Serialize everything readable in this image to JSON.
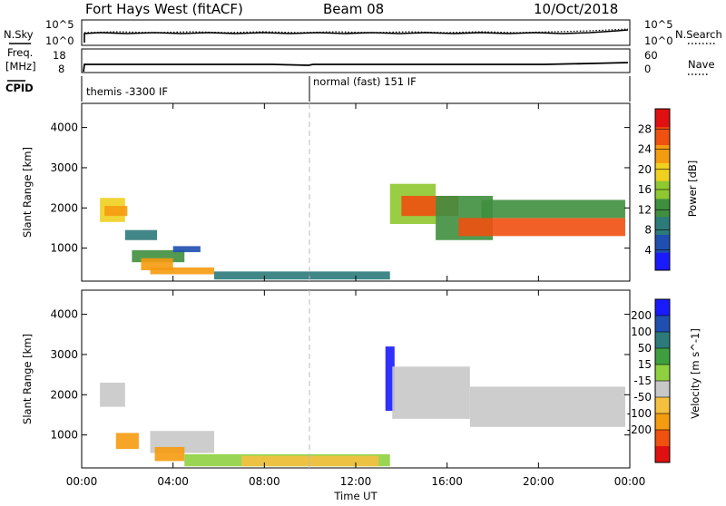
{
  "header": {
    "station": "Fort Hays West (fitACF)",
    "beam": "Beam 08",
    "date": "10/Oct/2018"
  },
  "top_panels": {
    "nsky_label": "N.Sky",
    "nsearch_label": "N.Search",
    "noise_ticks_left": [
      "10^5",
      "10^0"
    ],
    "noise_ticks_right": [
      "10^5",
      "10^0"
    ],
    "freq_label_1": "Freq.",
    "freq_label_2": "[MHz]",
    "freq_ticks": [
      "18",
      "8"
    ],
    "nave_label": "Nave",
    "nave_ticks": [
      "60",
      "0"
    ],
    "cpid_label": "CPID",
    "cpid_segments": [
      {
        "text": "themis -3300 IF",
        "start_hour": 0
      },
      {
        "text": "normal (fast) 151 IF",
        "start_hour": 10
      }
    ]
  },
  "colors": {
    "power_scale": [
      "#1a1aff",
      "#1f4fb0",
      "#2d7a7a",
      "#3f8f3f",
      "#8fc830",
      "#f0d020",
      "#f59b10",
      "#f05010",
      "#e01010"
    ],
    "velocity_scale": [
      "#e01010",
      "#f05010",
      "#f59b10",
      "#f5c040",
      "#c8c8c8",
      "#8fd040",
      "#3f9f3f",
      "#2d7a7a",
      "#1f4fb0",
      "#1a1aff"
    ],
    "ground_scatter": "#c8c8c8"
  },
  "chart_data": [
    {
      "type": "heatmap",
      "panel": "power",
      "ylabel": "Slant Range [km]",
      "x_ticks": [
        "00:00",
        "04:00",
        "08:00",
        "12:00",
        "16:00",
        "20:00",
        "00:00"
      ],
      "xlim_hours": [
        0,
        24
      ],
      "y_ticks": [
        "1000",
        "2000",
        "3000",
        "4000"
      ],
      "ylim": [
        180,
        4600
      ],
      "colorbar": {
        "label": "Power [dB]",
        "ticks": [
          "4",
          "8",
          "12",
          "16",
          "20",
          "24",
          "28"
        ],
        "range": [
          0,
          32
        ]
      },
      "regions": [
        {
          "t0": 0.8,
          "t1": 1.9,
          "r0": 1650,
          "r1": 2250,
          "value": 18
        },
        {
          "t0": 1.0,
          "t1": 2.0,
          "r0": 1800,
          "r1": 2050,
          "value": 24
        },
        {
          "t0": 1.9,
          "t1": 3.3,
          "r0": 1200,
          "r1": 1450,
          "value": 8
        },
        {
          "t0": 2.2,
          "t1": 4.5,
          "r0": 650,
          "r1": 950,
          "value": 14
        },
        {
          "t0": 2.6,
          "t1": 4.0,
          "r0": 450,
          "r1": 750,
          "value": 22
        },
        {
          "t0": 3.0,
          "t1": 5.8,
          "r0": 350,
          "r1": 520,
          "value": 24
        },
        {
          "t0": 4.0,
          "t1": 5.2,
          "r0": 900,
          "r1": 1050,
          "value": 6
        },
        {
          "t0": 5.8,
          "t1": 13.5,
          "r0": 220,
          "r1": 420,
          "value": 10
        },
        {
          "t0": 13.5,
          "t1": 15.5,
          "r0": 1600,
          "r1": 2600,
          "value": 16
        },
        {
          "t0": 14.0,
          "t1": 16.5,
          "r0": 1800,
          "r1": 2300,
          "value": 26
        },
        {
          "t0": 15.5,
          "t1": 18.0,
          "r0": 1200,
          "r1": 2300,
          "value": 14
        },
        {
          "t0": 16.5,
          "t1": 23.8,
          "r0": 1300,
          "r1": 1750,
          "value": 27
        },
        {
          "t0": 17.5,
          "t1": 23.8,
          "r0": 1750,
          "r1": 2200,
          "value": 12
        }
      ]
    },
    {
      "type": "heatmap",
      "panel": "velocity",
      "ylabel": "Slant Range [km]",
      "x_ticks": [
        "00:00",
        "04:00",
        "08:00",
        "12:00",
        "16:00",
        "20:00",
        "00:00"
      ],
      "xlim_hours": [
        0,
        24
      ],
      "xlabel": "Time UT",
      "y_ticks": [
        "1000",
        "2000",
        "3000",
        "4000"
      ],
      "ylim": [
        180,
        4600
      ],
      "colorbar": {
        "label": "Velocity [m s^-1]",
        "ticks": [
          "200",
          "100",
          "50",
          "15",
          "-15",
          "-50",
          "-100",
          "-200"
        ]
      },
      "regions": [
        {
          "t0": 0.8,
          "t1": 1.9,
          "r0": 1700,
          "r1": 2300,
          "value": 0
        },
        {
          "t0": 1.5,
          "t1": 2.5,
          "r0": 650,
          "r1": 1050,
          "value": -60
        },
        {
          "t0": 3.0,
          "t1": 5.8,
          "r0": 550,
          "r1": 1100,
          "value": 0
        },
        {
          "t0": 3.2,
          "t1": 4.5,
          "r0": 350,
          "r1": 700,
          "value": -70
        },
        {
          "t0": 4.5,
          "t1": 13.5,
          "r0": 220,
          "r1": 520,
          "value": 30
        },
        {
          "t0": 7.0,
          "t1": 13.0,
          "r0": 220,
          "r1": 480,
          "value": -40
        },
        {
          "t0": 13.3,
          "t1": 13.7,
          "r0": 1600,
          "r1": 3200,
          "value": 180
        },
        {
          "t0": 13.6,
          "t1": 17.0,
          "r0": 1400,
          "r1": 2700,
          "value": 0
        },
        {
          "t0": 17.0,
          "t1": 23.8,
          "r0": 1200,
          "r1": 2200,
          "value": 0
        }
      ]
    }
  ]
}
